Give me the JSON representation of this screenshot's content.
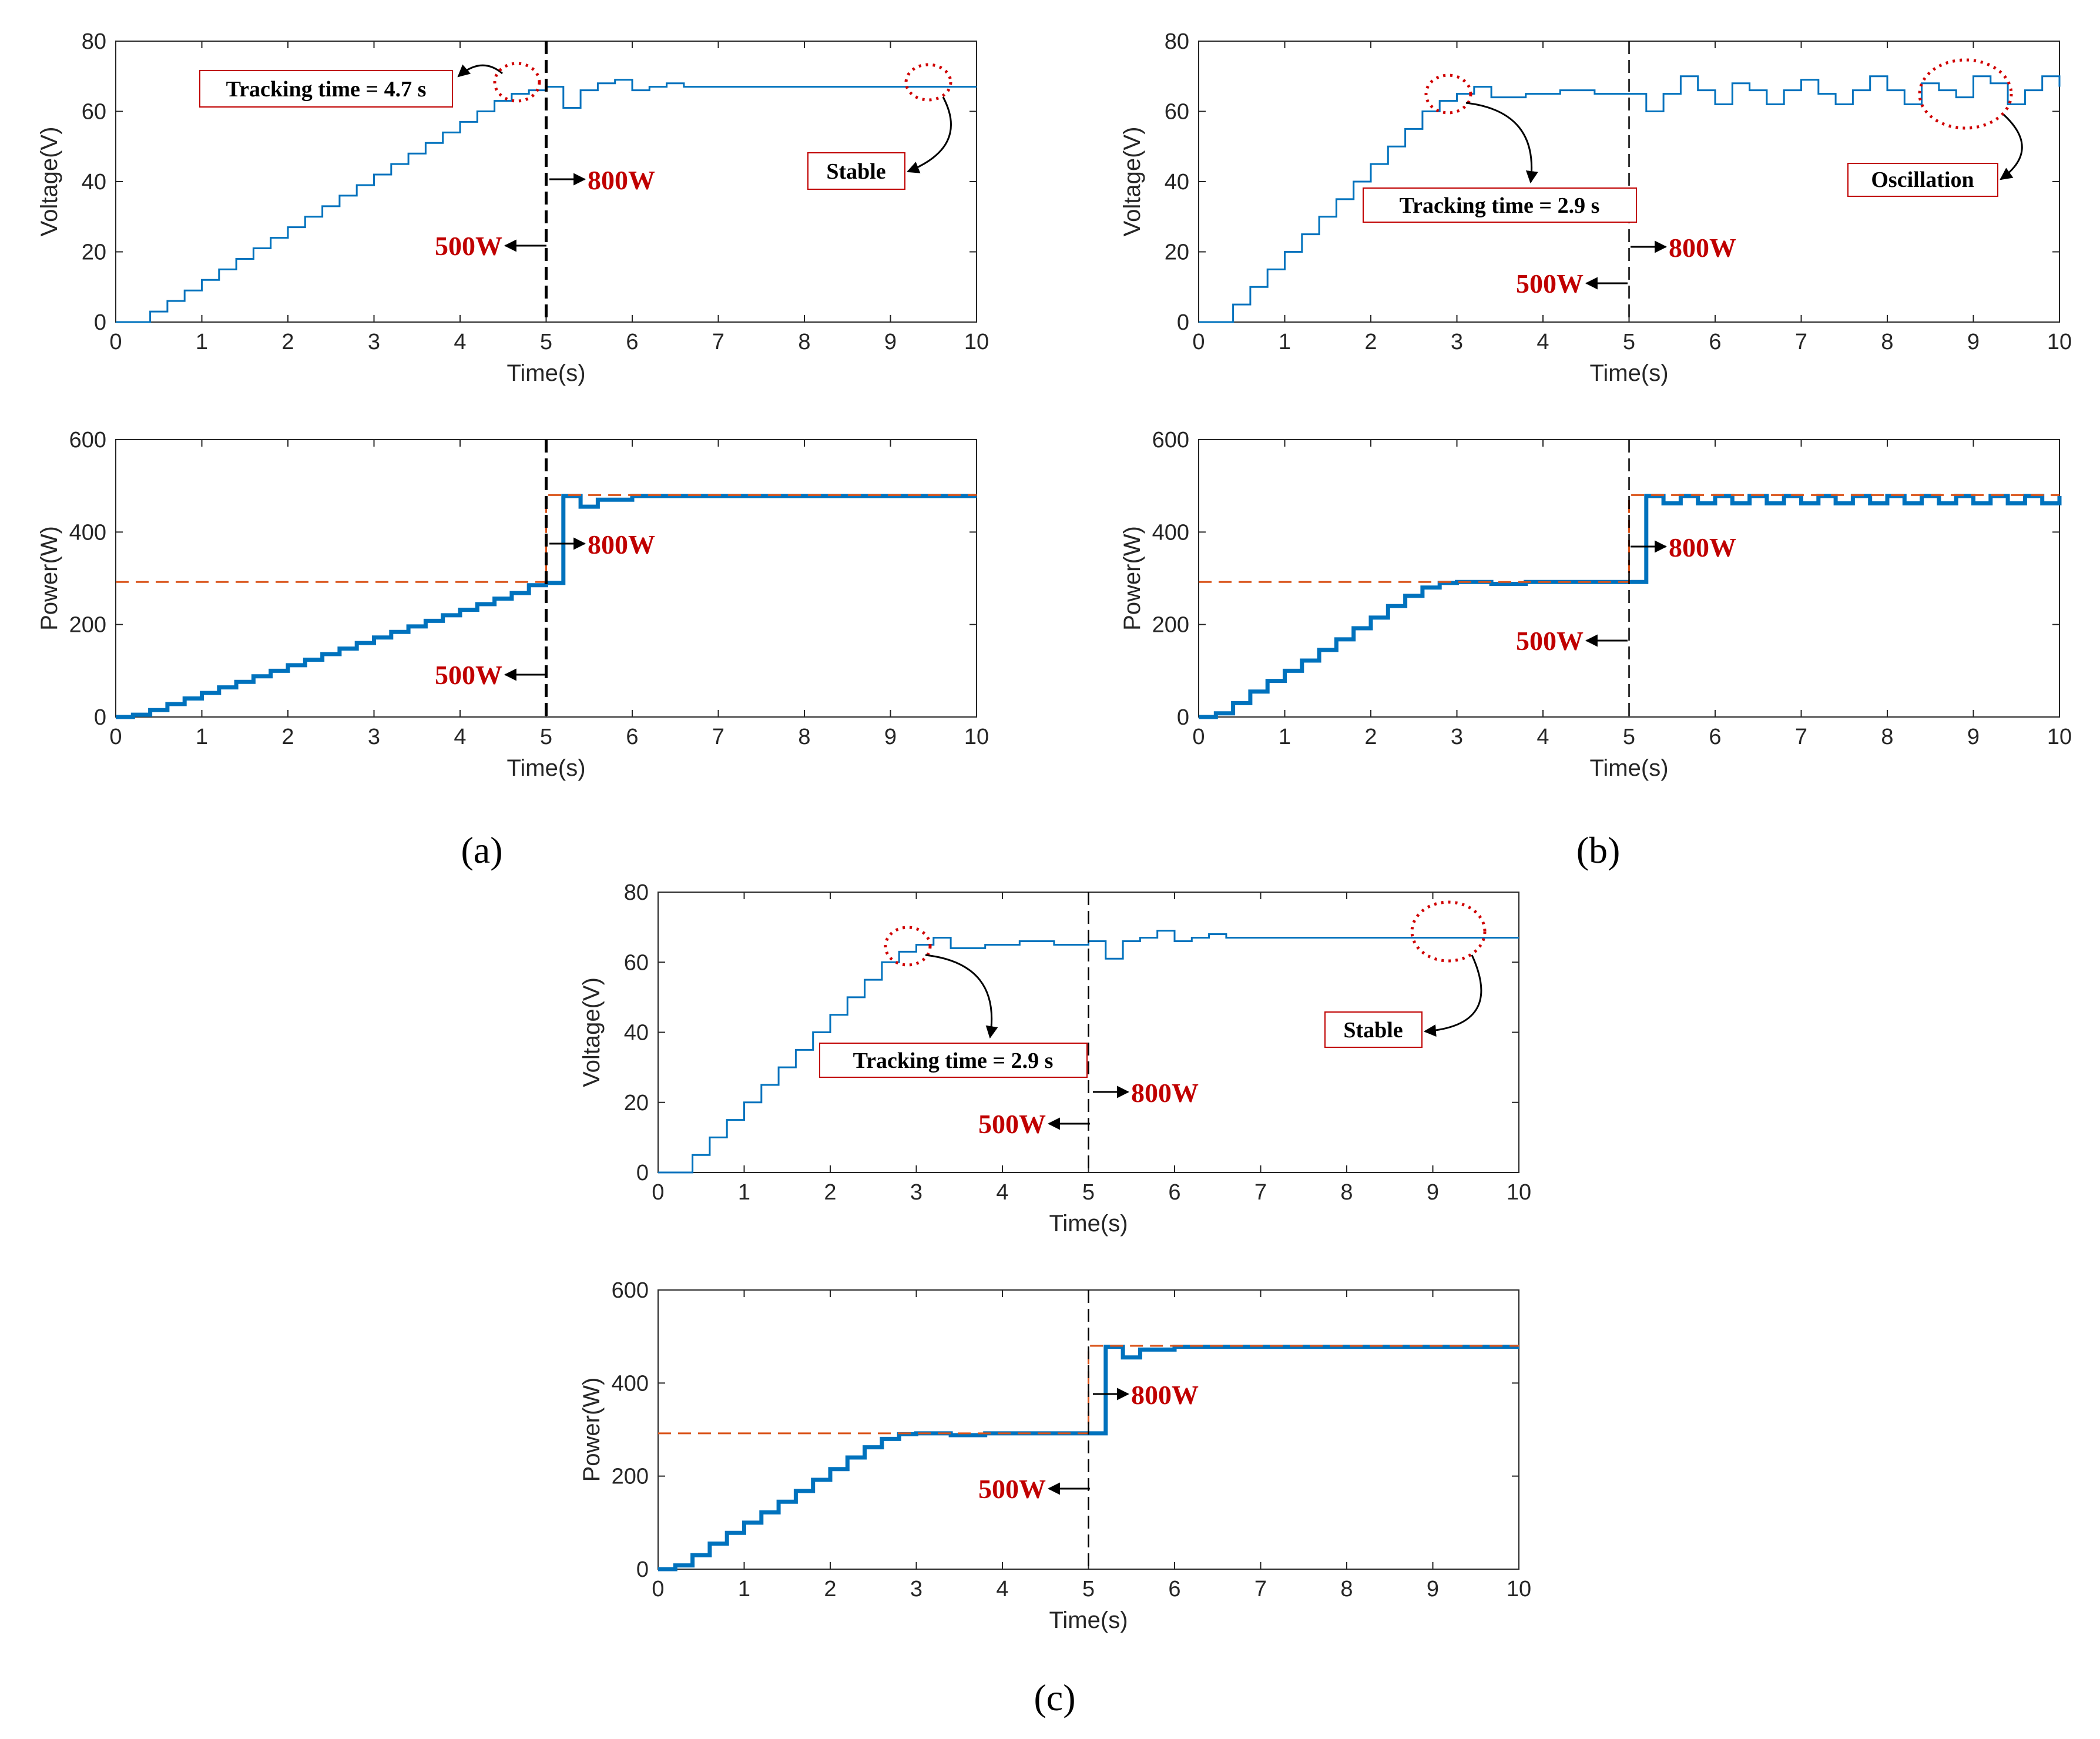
{
  "colors": {
    "signal": "#0072bd",
    "reference": "#d95319",
    "annotation": "#c00000",
    "circle": "#d00000",
    "axis": "#262626"
  },
  "chart_data": [
    {
      "id": "a-voltage",
      "type": "line",
      "panel": "a",
      "xlabel": "Time(s)",
      "ylabel": "Voltage(V)",
      "xlim": [
        0,
        10
      ],
      "ylim": [
        0,
        80
      ],
      "xticks": [
        "0",
        "1",
        "2",
        "3",
        "4",
        "5",
        "6",
        "7",
        "8",
        "9",
        "10"
      ],
      "yticks": [
        "0",
        "20",
        "40",
        "60",
        "80"
      ],
      "series": [
        {
          "name": "Voltage",
          "style": "step",
          "x": [
            0,
            0.4,
            0.6,
            0.8,
            1.0,
            1.2,
            1.4,
            1.6,
            1.8,
            2.0,
            2.2,
            2.4,
            2.6,
            2.8,
            3.0,
            3.2,
            3.4,
            3.6,
            3.8,
            4.0,
            4.2,
            4.4,
            4.6,
            4.8,
            5.0,
            5.2,
            5.4,
            5.6,
            5.8,
            6.0,
            6.2,
            6.4,
            6.6,
            6.8,
            7.0,
            10
          ],
          "y": [
            0,
            3,
            6,
            9,
            12,
            15,
            18,
            21,
            24,
            27,
            30,
            33,
            36,
            39,
            42,
            45,
            48,
            51,
            54,
            57,
            60,
            63,
            65,
            66,
            67,
            61,
            66,
            68,
            69,
            66,
            67,
            68,
            67,
            67,
            67,
            67
          ]
        }
      ],
      "vline": 5,
      "annotations": [
        "Tracking time = 4.7 s",
        "Stable",
        "800W",
        "500W"
      ]
    },
    {
      "id": "a-power",
      "type": "line",
      "panel": "a",
      "xlabel": "Time(s)",
      "ylabel": "Power(W)",
      "xlim": [
        0,
        10
      ],
      "ylim": [
        0,
        600
      ],
      "xticks": [
        "0",
        "1",
        "2",
        "3",
        "4",
        "5",
        "6",
        "7",
        "8",
        "9",
        "10"
      ],
      "yticks": [
        "0",
        "200",
        "400",
        "600"
      ],
      "series": [
        {
          "name": "Power",
          "style": "step",
          "x": [
            0,
            0.2,
            0.4,
            0.6,
            0.8,
            1.0,
            1.2,
            1.4,
            1.6,
            1.8,
            2.0,
            2.2,
            2.4,
            2.6,
            2.8,
            3.0,
            3.2,
            3.4,
            3.6,
            3.8,
            4.0,
            4.2,
            4.4,
            4.6,
            4.8,
            5.0,
            5.2,
            5.4,
            5.6,
            6.0,
            10
          ],
          "y": [
            0,
            5,
            15,
            28,
            40,
            52,
            64,
            76,
            88,
            100,
            112,
            124,
            136,
            148,
            160,
            172,
            184,
            196,
            208,
            220,
            232,
            244,
            256,
            268,
            285,
            290,
            478,
            455,
            470,
            478,
            478
          ]
        },
        {
          "name": "Reference",
          "style": "dashed",
          "x": [
            0,
            5,
            5,
            10
          ],
          "y": [
            292,
            292,
            480,
            480
          ]
        }
      ],
      "vline": 5,
      "annotations": [
        "800W",
        "500W"
      ]
    },
    {
      "id": "b-voltage",
      "type": "line",
      "panel": "b",
      "xlabel": "Time(s)",
      "ylabel": "Voltage(V)",
      "xlim": [
        0,
        10
      ],
      "ylim": [
        0,
        80
      ],
      "xticks": [
        "0",
        "1",
        "2",
        "3",
        "4",
        "5",
        "6",
        "7",
        "8",
        "9",
        "10"
      ],
      "yticks": [
        "0",
        "20",
        "40",
        "60",
        "80"
      ],
      "series": [
        {
          "name": "Voltage",
          "style": "step",
          "x": [
            0,
            0.4,
            0.6,
            0.8,
            1.0,
            1.2,
            1.4,
            1.6,
            1.8,
            2.0,
            2.2,
            2.4,
            2.6,
            2.8,
            3.0,
            3.2,
            3.4,
            3.8,
            4.2,
            4.6,
            5.0,
            5.2,
            5.4,
            5.6,
            5.8,
            6.0,
            6.2,
            6.4,
            6.6,
            6.8,
            7.0,
            7.2,
            7.4,
            7.6,
            7.8,
            8.0,
            8.2,
            8.4,
            8.6,
            8.8,
            9.0,
            9.2,
            9.4,
            9.6,
            9.8,
            10
          ],
          "y": [
            0,
            5,
            10,
            15,
            20,
            25,
            30,
            35,
            40,
            45,
            50,
            55,
            60,
            63,
            65,
            67,
            64,
            65,
            66,
            65,
            65,
            60,
            65,
            70,
            66,
            62,
            68,
            66,
            62,
            66,
            69,
            65,
            62,
            66,
            70,
            66,
            62,
            68,
            66,
            64,
            70,
            68,
            62,
            66,
            70,
            67
          ]
        }
      ],
      "vline": 5,
      "annotations": [
        "Tracking time = 2.9 s",
        "Oscillation",
        "800W",
        "500W"
      ]
    },
    {
      "id": "b-power",
      "type": "line",
      "panel": "b",
      "xlabel": "Time(s)",
      "ylabel": "Power(W)",
      "xlim": [
        0,
        10
      ],
      "ylim": [
        0,
        600
      ],
      "xticks": [
        "0",
        "1",
        "2",
        "3",
        "4",
        "5",
        "6",
        "7",
        "8",
        "9",
        "10"
      ],
      "yticks": [
        "0",
        "200",
        "400",
        "600"
      ],
      "series": [
        {
          "name": "Power",
          "style": "step",
          "x": [
            0,
            0.2,
            0.4,
            0.6,
            0.8,
            1.0,
            1.2,
            1.4,
            1.6,
            1.8,
            2.0,
            2.2,
            2.4,
            2.6,
            2.8,
            3.0,
            3.4,
            3.8,
            5.0,
            5.2,
            5.4,
            5.6,
            5.8,
            6.0,
            6.2,
            6.4,
            6.6,
            6.8,
            7.0,
            7.2,
            7.4,
            7.6,
            7.8,
            8.0,
            8.2,
            8.4,
            8.6,
            8.8,
            9.0,
            9.2,
            9.4,
            9.6,
            9.8,
            10
          ],
          "y": [
            0,
            8,
            30,
            55,
            78,
            100,
            122,
            145,
            168,
            192,
            215,
            240,
            262,
            280,
            290,
            292,
            288,
            292,
            292,
            478,
            462,
            478,
            462,
            478,
            462,
            478,
            462,
            478,
            462,
            478,
            462,
            478,
            462,
            478,
            462,
            478,
            462,
            478,
            462,
            478,
            462,
            478,
            462,
            478
          ]
        },
        {
          "name": "Reference",
          "style": "dashed",
          "x": [
            0,
            5,
            5,
            10
          ],
          "y": [
            292,
            292,
            480,
            480
          ]
        }
      ],
      "vline": 5,
      "annotations": [
        "800W",
        "500W"
      ]
    },
    {
      "id": "c-voltage",
      "type": "line",
      "panel": "c",
      "xlabel": "Time(s)",
      "ylabel": "Voltage(V)",
      "xlim": [
        0,
        10
      ],
      "ylim": [
        0,
        80
      ],
      "xticks": [
        "0",
        "1",
        "2",
        "3",
        "4",
        "5",
        "6",
        "7",
        "8",
        "9",
        "10"
      ],
      "yticks": [
        "0",
        "20",
        "40",
        "60",
        "80"
      ],
      "series": [
        {
          "name": "Voltage",
          "style": "step",
          "x": [
            0,
            0.4,
            0.6,
            0.8,
            1.0,
            1.2,
            1.4,
            1.6,
            1.8,
            2.0,
            2.2,
            2.4,
            2.6,
            2.8,
            3.0,
            3.2,
            3.4,
            3.8,
            4.2,
            4.6,
            5.0,
            5.2,
            5.4,
            5.6,
            5.8,
            6.0,
            6.2,
            6.4,
            6.6,
            6.8,
            7.0,
            10
          ],
          "y": [
            0,
            5,
            10,
            15,
            20,
            25,
            30,
            35,
            40,
            45,
            50,
            55,
            60,
            63,
            65,
            67,
            64,
            65,
            66,
            65,
            66,
            61,
            66,
            67,
            69,
            66,
            67,
            68,
            67,
            67,
            67,
            67
          ]
        }
      ],
      "vline": 5,
      "annotations": [
        "Tracking time = 2.9 s",
        "Stable",
        "800W",
        "500W"
      ]
    },
    {
      "id": "c-power",
      "type": "line",
      "panel": "c",
      "xlabel": "Time(s)",
      "ylabel": "Power(W)",
      "xlim": [
        0,
        10
      ],
      "ylim": [
        0,
        600
      ],
      "xticks": [
        "0",
        "1",
        "2",
        "3",
        "4",
        "5",
        "6",
        "7",
        "8",
        "9",
        "10"
      ],
      "yticks": [
        "0",
        "200",
        "400",
        "600"
      ],
      "series": [
        {
          "name": "Power",
          "style": "step",
          "x": [
            0,
            0.2,
            0.4,
            0.6,
            0.8,
            1.0,
            1.2,
            1.4,
            1.6,
            1.8,
            2.0,
            2.2,
            2.4,
            2.6,
            2.8,
            3.0,
            3.4,
            3.8,
            5.0,
            5.2,
            5.4,
            5.6,
            6.0,
            10
          ],
          "y": [
            0,
            8,
            30,
            55,
            78,
            100,
            122,
            145,
            168,
            192,
            215,
            240,
            262,
            280,
            290,
            292,
            288,
            292,
            292,
            478,
            455,
            472,
            478,
            478
          ]
        },
        {
          "name": "Reference",
          "style": "dashed",
          "x": [
            0,
            5,
            5,
            10
          ],
          "y": [
            292,
            292,
            480,
            480
          ]
        }
      ],
      "vline": 5,
      "annotations": [
        "800W",
        "500W"
      ]
    }
  ],
  "panel_labels": {
    "a": "(a)",
    "b": "(b)",
    "c": "(c)"
  },
  "labels": {
    "a_track": "Tracking time = 4.7 s",
    "a_stable": "Stable",
    "b_track": "Tracking time = 2.9 s",
    "b_osc": "Oscillation",
    "c_track": "Tracking time = 2.9 s",
    "c_stable": "Stable",
    "w800": "800W",
    "w500": "500W"
  }
}
